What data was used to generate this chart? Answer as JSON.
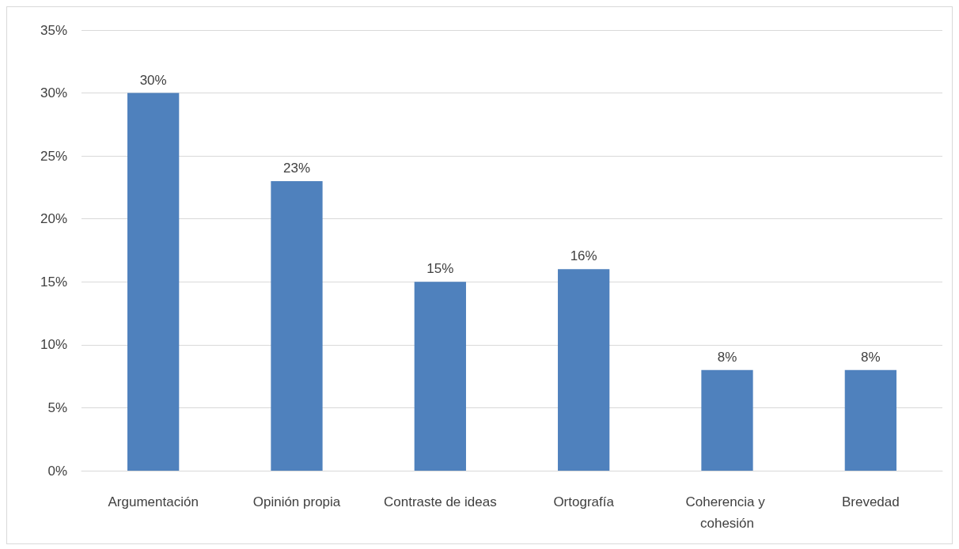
{
  "chart_data": {
    "type": "bar",
    "categories": [
      "Argumentación",
      "Opinión propia",
      "Contraste de ideas",
      "Ortografía",
      "Coherencia y cohesión",
      "Brevedad"
    ],
    "values": [
      30,
      23,
      15,
      16,
      8,
      8
    ],
    "color": "#4f81bd",
    "value_labels": [
      "30%",
      "23%",
      "15%",
      "16%",
      "8%",
      "8%"
    ],
    "ylim": [
      0,
      35
    ],
    "yticks": [
      {
        "value": 0,
        "label": "0%"
      },
      {
        "value": 5,
        "label": "5%"
      },
      {
        "value": 10,
        "label": "10%"
      },
      {
        "value": 15,
        "label": "15%"
      },
      {
        "value": 20,
        "label": "20%"
      },
      {
        "value": 25,
        "label": "25%"
      },
      {
        "value": 30,
        "label": "30%"
      },
      {
        "value": 35,
        "label": "35%"
      }
    ],
    "grid": "y"
  }
}
